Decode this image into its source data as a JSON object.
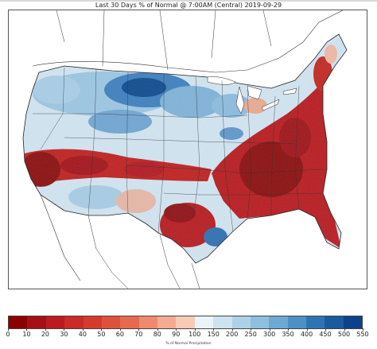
{
  "title": "Last 30 Days % of Normal @ 7:00AM (Central) 2019-09-29",
  "colorbar": {
    "label": "% of Normal Precipitation",
    "ticks": [
      "0",
      "10",
      "20",
      "30",
      "40",
      "50",
      "60",
      "70",
      "80",
      "90",
      "100",
      "150",
      "200",
      "250",
      "300",
      "350",
      "400",
      "450",
      "500",
      "550"
    ],
    "colors": [
      "#8b0000",
      "#a50f15",
      "#bd1a1f",
      "#cb2a26",
      "#d63a2f",
      "#e0513c",
      "#e8694e",
      "#ef8a6c",
      "#f5ab91",
      "#f9cbb7",
      "#eaf3f8",
      "#cde3f0",
      "#aed1e8",
      "#8fbfdf",
      "#6ea9d3",
      "#4d90c4",
      "#2f74b2",
      "#1a5ba0",
      "#0b428a"
    ]
  },
  "map": {
    "water_color": "#ffffff",
    "dry_color": "#b2181b",
    "wet_color": "#2166ac",
    "near_normal_color": "#d7e8f4"
  }
}
